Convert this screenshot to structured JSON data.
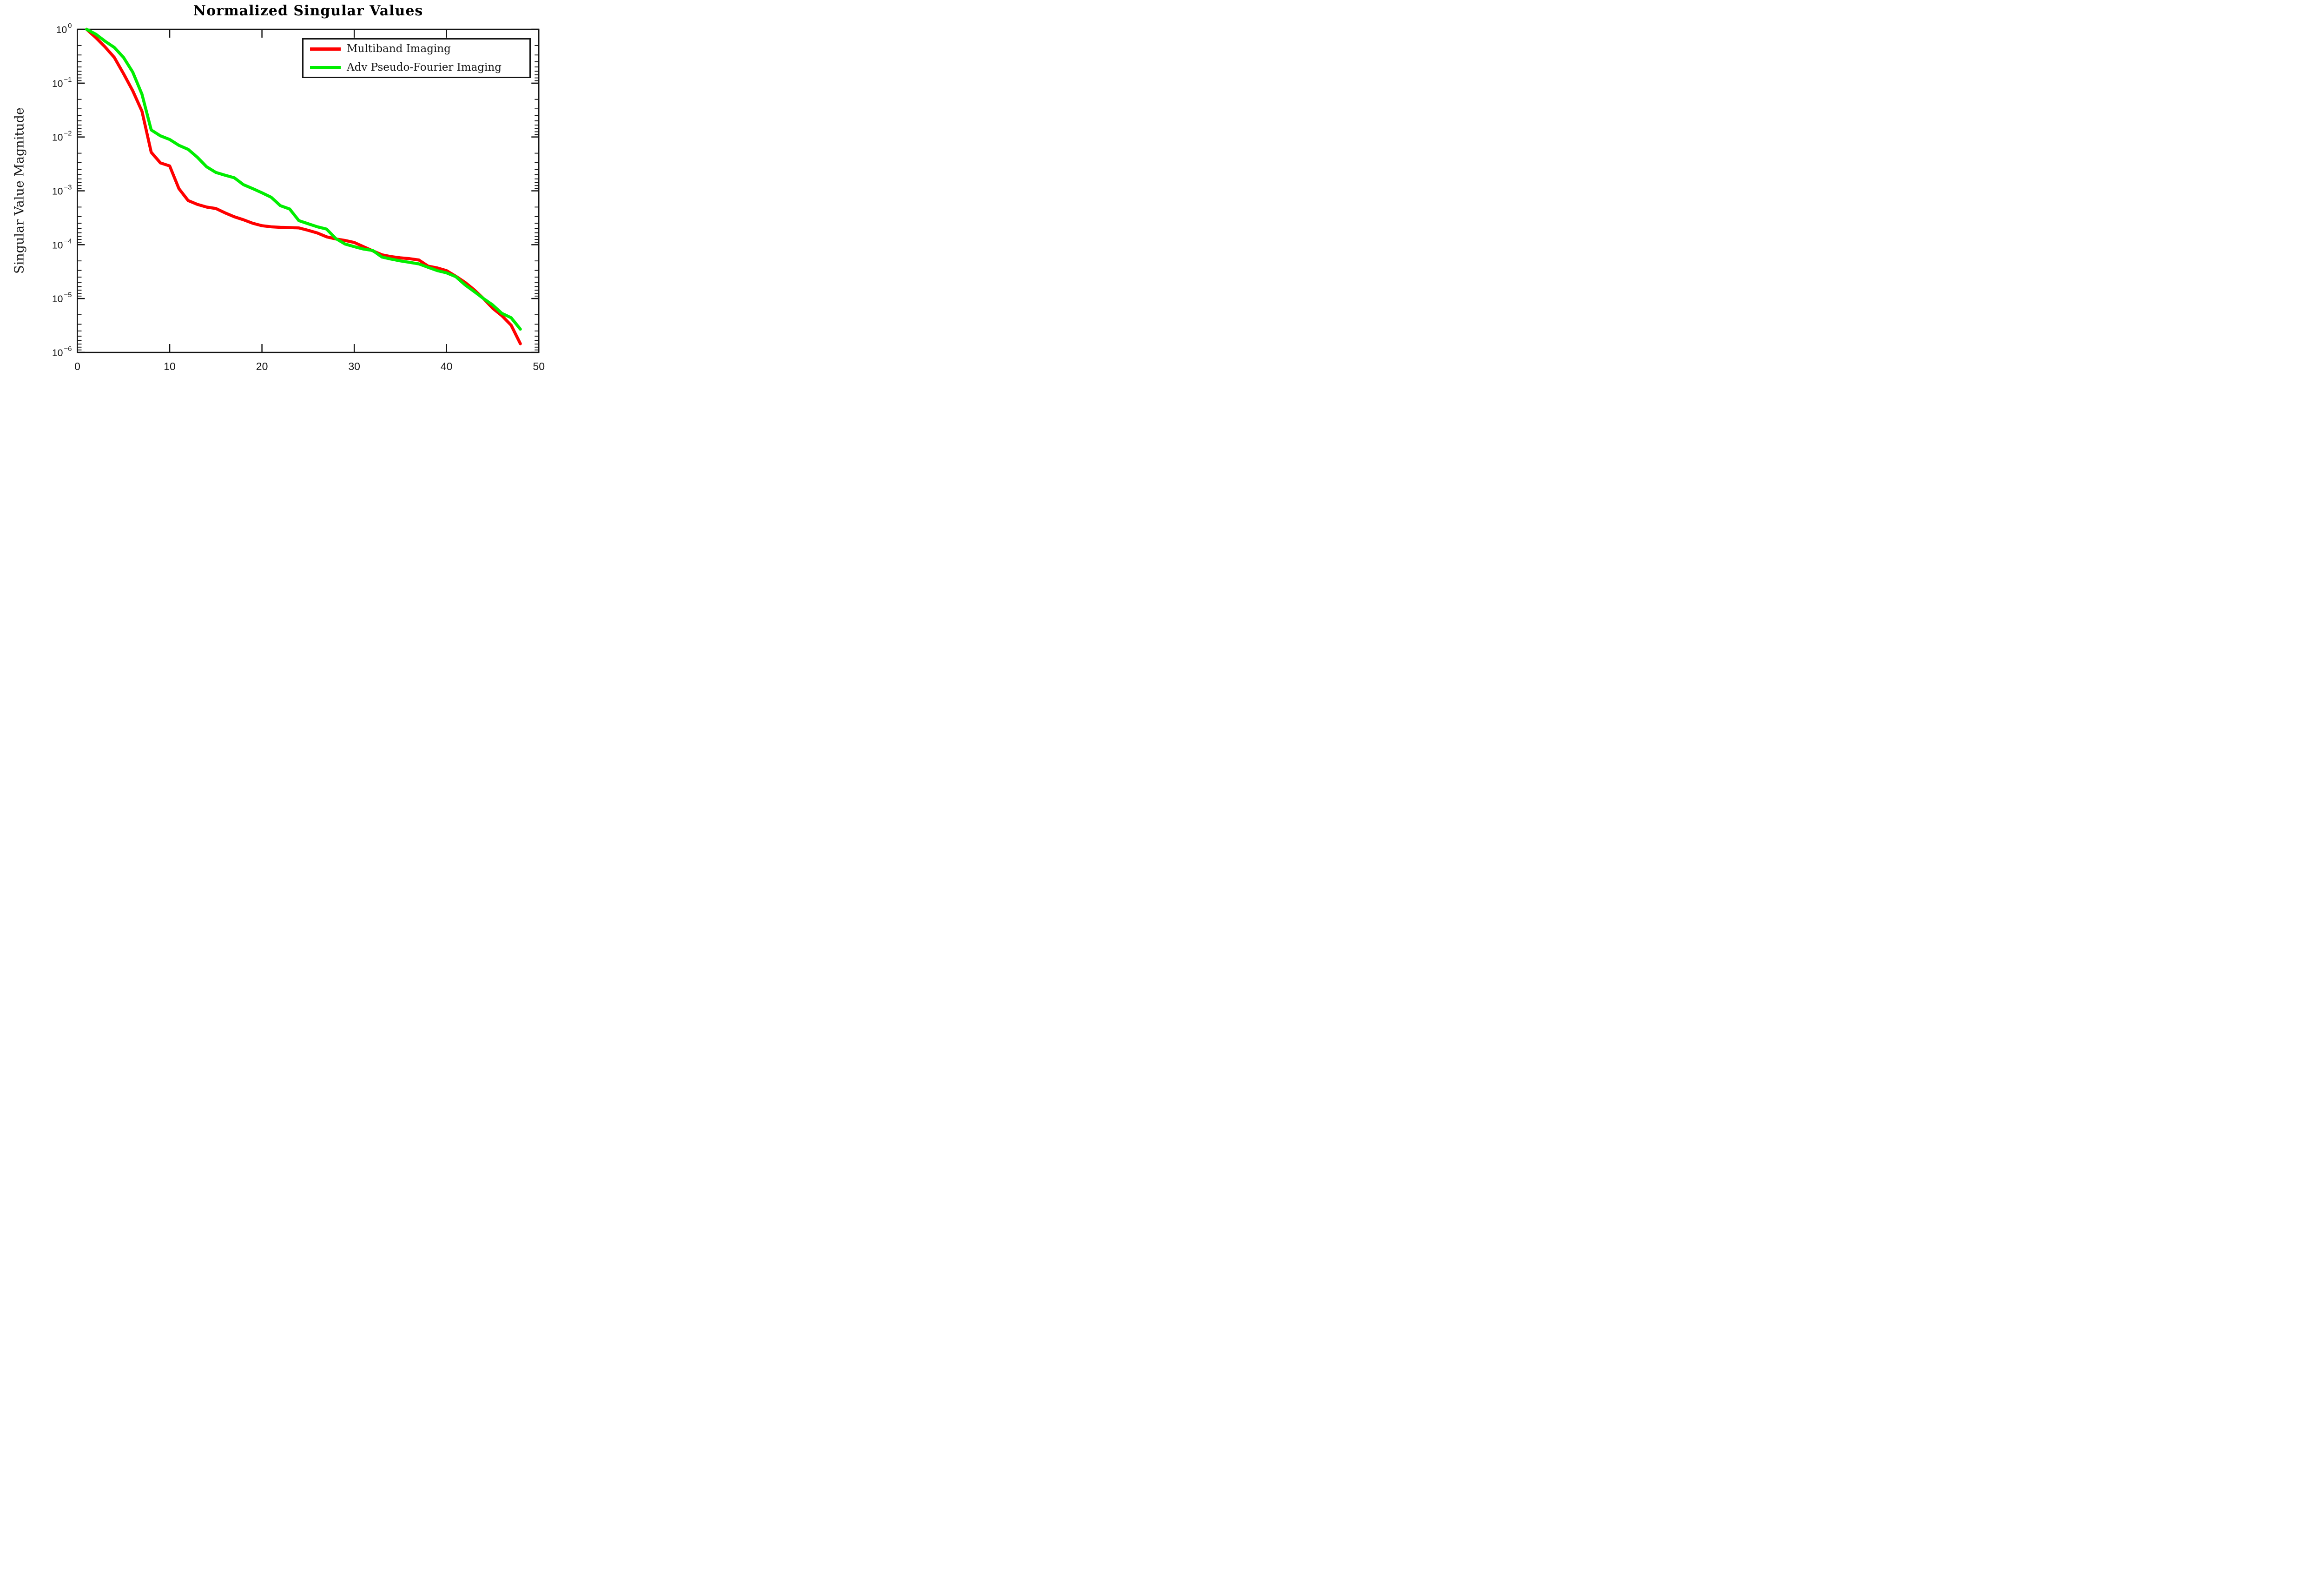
{
  "figure": {
    "background_color": "#ffffff",
    "axis_color": "#141414"
  },
  "chart_data": {
    "type": "line",
    "title": "Normalized Singular Values",
    "xlabel": "",
    "ylabel": "Singular Value Magnitude",
    "x_range": [
      0,
      50
    ],
    "y_scale": "log",
    "y_range": [
      1e-06,
      1
    ],
    "grid": false,
    "legend_position": "top-right",
    "x_ticks": [
      0,
      10,
      20,
      30,
      40,
      50
    ],
    "y_tick_labels": [
      "10^0",
      "10^-1",
      "10^-2",
      "10^-3",
      "10^-4",
      "10^-5",
      "10^-6"
    ],
    "y_tick_exponents": [
      0,
      -1,
      -2,
      -3,
      -4,
      -5,
      -6
    ],
    "x": [
      1,
      2,
      3,
      4,
      5,
      6,
      7,
      8,
      9,
      10,
      11,
      12,
      13,
      14,
      15,
      16,
      17,
      18,
      19,
      20,
      21,
      22,
      23,
      24,
      25,
      26,
      27,
      28,
      29,
      30,
      31,
      32,
      33,
      34,
      35,
      36,
      37,
      38,
      39,
      40,
      41,
      42,
      43,
      44,
      45,
      46,
      47,
      48
    ],
    "series": [
      {
        "name": "Multiband Imaging",
        "color": "#ff0000",
        "values": [
          1.0,
          0.7,
          0.47,
          0.3,
          0.15,
          0.072,
          0.03,
          0.0052,
          0.0033,
          0.0029,
          0.0011,
          0.00066,
          0.00056,
          0.0005,
          0.00047,
          0.00039,
          0.00033,
          0.00029,
          0.00025,
          0.000225,
          0.000215,
          0.00021,
          0.000208,
          0.000205,
          0.000185,
          0.000165,
          0.00014,
          0.000128,
          0.00012,
          0.00011,
          9.2e-05,
          7.7e-05,
          6.5e-05,
          6e-05,
          5.7e-05,
          5.5e-05,
          5.2e-05,
          4e-05,
          3.7e-05,
          3.3e-05,
          2.6e-05,
          2e-05,
          1.45e-05,
          1e-05,
          6.6e-06,
          4.8e-06,
          3.2e-06,
          1.45e-06
        ]
      },
      {
        "name": "Adv Pseudo-Fourier Imaging",
        "color": "#00ee00",
        "values": [
          1.0,
          0.81,
          0.6,
          0.46,
          0.3,
          0.16,
          0.062,
          0.0135,
          0.0105,
          0.009,
          0.007,
          0.0059,
          0.0042,
          0.0028,
          0.0022,
          0.00195,
          0.00175,
          0.0013,
          0.0011,
          0.00092,
          0.00076,
          0.00053,
          0.00046,
          0.00028,
          0.000245,
          0.000215,
          0.000195,
          0.00013,
          0.000103,
          9.2e-05,
          8.3e-05,
          7.8e-05,
          5.9e-05,
          5.4e-05,
          5e-05,
          4.7e-05,
          4.4e-05,
          3.8e-05,
          3.3e-05,
          3e-05,
          2.55e-05,
          1.8e-05,
          1.35e-05,
          1e-05,
          7.6e-06,
          5.3e-06,
          4.4e-06,
          2.7e-06
        ]
      }
    ]
  }
}
